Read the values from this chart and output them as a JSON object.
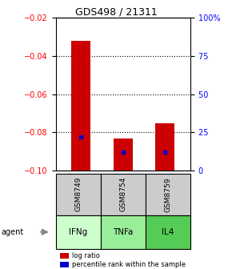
{
  "title": "GDS498 / 21311",
  "samples": [
    "GSM8749",
    "GSM8754",
    "GSM8759"
  ],
  "agents": [
    "IFNg",
    "TNFa",
    "IL4"
  ],
  "log_ratios": [
    -0.032,
    -0.083,
    -0.075
  ],
  "percentile_ranks": [
    0.22,
    0.12,
    0.12
  ],
  "bar_bottom": -0.1,
  "ylim": [
    -0.1,
    -0.02
  ],
  "yticks_left": [
    -0.1,
    -0.08,
    -0.06,
    -0.04,
    -0.02
  ],
  "yticks_right": [
    0,
    25,
    50,
    75,
    100
  ],
  "bar_color": "#cc0000",
  "percentile_color": "#0000cc",
  "agent_colors": [
    "#ccffcc",
    "#99ee99",
    "#55cc55"
  ],
  "sample_bg": "#cccccc",
  "legend_log_ratio": "log ratio",
  "legend_percentile": "percentile rank within the sample",
  "agent_label": "agent"
}
